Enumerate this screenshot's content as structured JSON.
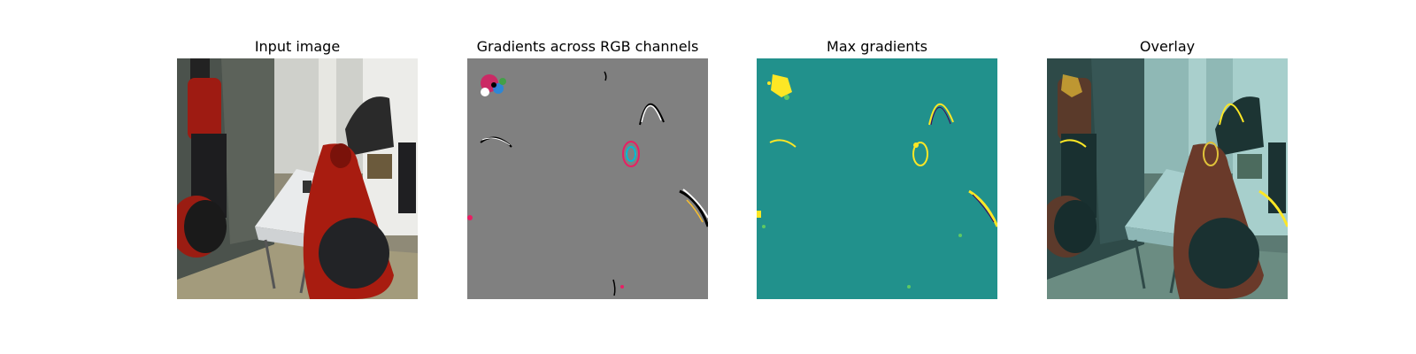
{
  "panels": [
    {
      "id": "input",
      "title": "Input image"
    },
    {
      "id": "gradients-rgb",
      "title": "Gradients across RGB channels"
    },
    {
      "id": "max-gradients",
      "title": "Max gradients"
    },
    {
      "id": "overlay",
      "title": "Overlay"
    }
  ],
  "colors": {
    "gradient_background": "#808080",
    "max_gradient_background": "#21918c",
    "max_gradient_highlight": "#fde725",
    "overlay_tint": "#5fa8a4"
  }
}
